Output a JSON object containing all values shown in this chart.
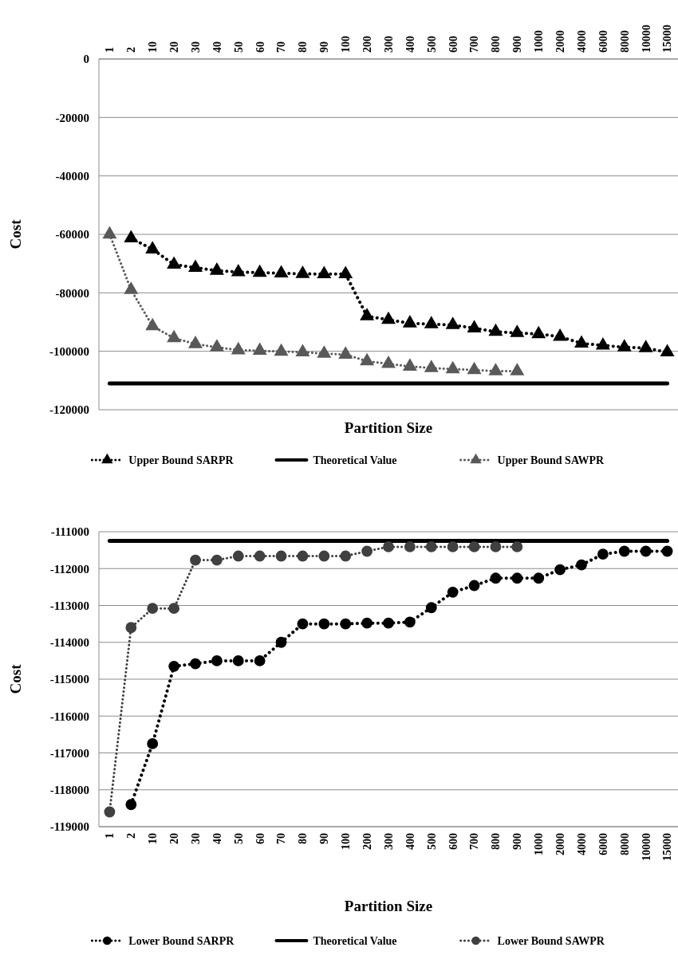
{
  "chart_data": [
    {
      "type": "line",
      "xlabel": "Partition Size",
      "ylabel": "Cost",
      "categories": [
        "1",
        "2",
        "10",
        "20",
        "30",
        "40",
        "50",
        "60",
        "70",
        "80",
        "90",
        "100",
        "200",
        "300",
        "400",
        "500",
        "600",
        "700",
        "800",
        "900",
        "1000",
        "2000",
        "4000",
        "6000",
        "8000",
        "10000",
        "15000"
      ],
      "series": [
        {
          "name": "Upper Bound SARPR",
          "color": "#000000",
          "marker": "triangle",
          "line_style": "dotted",
          "values": [
            null,
            -61300,
            -65100,
            -70300,
            -71400,
            -72400,
            -72900,
            -73100,
            -73300,
            -73500,
            -73600,
            -73600,
            -88000,
            -89200,
            -90400,
            -90700,
            -91000,
            -92100,
            -93300,
            -93700,
            -94100,
            -95000,
            -97300,
            -98000,
            -98600,
            -98900,
            -100300
          ]
        },
        {
          "name": "Theoretical Value",
          "color": "#000000",
          "marker": "none",
          "line_style": "solid",
          "values": [
            -111000,
            -111000,
            -111000,
            -111000,
            -111000,
            -111000,
            -111000,
            -111000,
            -111000,
            -111000,
            -111000,
            -111000,
            -111000,
            -111000,
            -111000,
            -111000,
            -111000,
            -111000,
            -111000,
            -111000,
            -111000,
            -111000,
            -111000,
            -111000,
            -111000,
            -111000,
            -111000
          ]
        },
        {
          "name": "Upper Bound SAWPR",
          "color": "#595959",
          "marker": "triangle",
          "line_style": "dotted",
          "values": [
            -60000,
            -79000,
            -91400,
            -95500,
            -97500,
            -98600,
            -99600,
            -99800,
            -100100,
            -100300,
            -100800,
            -101100,
            -103400,
            -104300,
            -105200,
            -105700,
            -106100,
            -106400,
            -106800,
            -106800,
            null,
            null,
            null,
            null,
            null,
            null,
            null
          ]
        }
      ],
      "ylim": [
        -120000,
        0
      ],
      "yticks": [
        -120000,
        -100000,
        -80000,
        -60000,
        -40000,
        -20000,
        0
      ],
      "grid": "y",
      "legend": "bottom"
    },
    {
      "type": "line",
      "xlabel": "Partition Size",
      "ylabel": "Cost",
      "categories": [
        "1",
        "2",
        "10",
        "20",
        "30",
        "40",
        "50",
        "60",
        "70",
        "80",
        "90",
        "100",
        "200",
        "300",
        "400",
        "500",
        "600",
        "700",
        "800",
        "900",
        "1000",
        "2000",
        "4000",
        "6000",
        "8000",
        "10000",
        "15000"
      ],
      "series": [
        {
          "name": "Lower Bound SARPR",
          "color": "#000000",
          "marker": "circle",
          "line_style": "dotted",
          "values": [
            null,
            -118400,
            -116750,
            -114650,
            -114580,
            -114500,
            -114500,
            -114500,
            -114000,
            -113500,
            -113500,
            -113500,
            -113480,
            -113480,
            -113450,
            -113060,
            -112640,
            -112460,
            -112260,
            -112260,
            -112260,
            -112030,
            -111900,
            -111610,
            -111530,
            -111530,
            -111530
          ]
        },
        {
          "name": "Theoretical Value",
          "color": "#000000",
          "marker": "none",
          "line_style": "solid",
          "values": [
            -111250,
            -111250,
            -111250,
            -111250,
            -111250,
            -111250,
            -111250,
            -111250,
            -111250,
            -111250,
            -111250,
            -111250,
            -111250,
            -111250,
            -111250,
            -111250,
            -111250,
            -111250,
            -111250,
            -111250,
            -111250,
            -111250,
            -111250,
            -111250,
            -111250,
            -111250,
            -111250
          ]
        },
        {
          "name": "Lower Bound SAWPR",
          "color": "#404040",
          "marker": "circle",
          "line_style": "dotted",
          "values": [
            -118600,
            -113600,
            -113080,
            -113080,
            -111770,
            -111770,
            -111660,
            -111660,
            -111660,
            -111660,
            -111660,
            -111660,
            -111530,
            -111410,
            -111410,
            -111410,
            -111410,
            -111410,
            -111410,
            -111410,
            null,
            null,
            null,
            null,
            null,
            null,
            null
          ]
        }
      ],
      "ylim": [
        -119000,
        -111000
      ],
      "yticks": [
        -119000,
        -118000,
        -117000,
        -116000,
        -115000,
        -114000,
        -113000,
        -112000,
        -111000
      ],
      "grid": "y",
      "legend": "bottom"
    }
  ]
}
